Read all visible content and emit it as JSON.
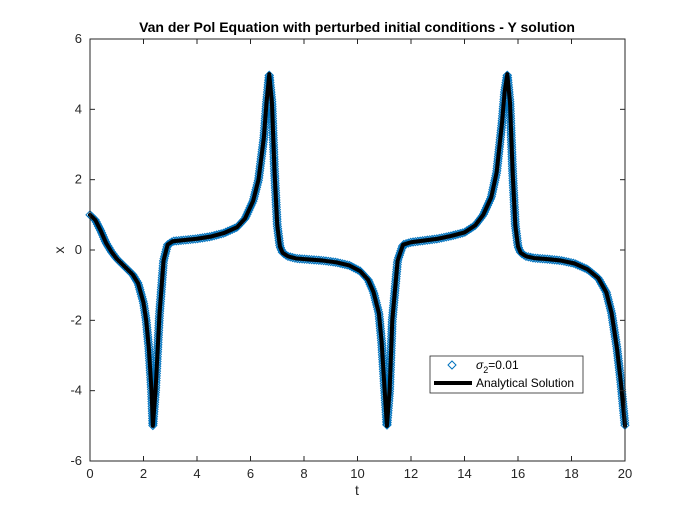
{
  "chart_data": {
    "type": "line",
    "title": "Van der Pol Equation with perturbed initial conditions - Y solution",
    "xlabel": "t",
    "ylabel": "x",
    "xlim": [
      0,
      20
    ],
    "ylim": [
      -6,
      6
    ],
    "xticks": [
      "0",
      "2",
      "4",
      "6",
      "8",
      "10",
      "12",
      "14",
      "16",
      "18",
      "20"
    ],
    "yticks": [
      "6",
      "4",
      "2",
      "0",
      "-2",
      "-4",
      "-6"
    ],
    "grid": false,
    "legend_position": "lower-right",
    "colors": {
      "scatter": "#0072BD",
      "line": "#000000"
    },
    "series": [
      {
        "name": "σ2=0.01",
        "legend_main": "σ",
        "legend_sub": "2",
        "legend_tail": "=0.01",
        "kind": "scatter",
        "marker": "diamond"
      },
      {
        "name": "Analytical Solution",
        "kind": "line",
        "x": [
          0,
          0.2,
          0.4,
          0.6,
          0.8,
          1.0,
          1.2,
          1.4,
          1.6,
          1.8,
          2.0,
          2.1,
          2.2,
          2.3,
          2.35,
          2.45,
          2.6,
          2.75,
          2.9,
          3.1,
          3.5,
          4.0,
          4.5,
          5.0,
          5.5,
          5.8,
          6.1,
          6.3,
          6.5,
          6.6,
          6.7,
          6.8,
          6.9,
          7.0,
          7.1,
          7.2,
          7.4,
          7.7,
          8.2,
          8.7,
          9.2,
          9.7,
          10.1,
          10.4,
          10.6,
          10.8,
          10.9,
          11.0,
          11.1,
          11.2,
          11.3,
          11.5,
          11.7,
          12.0,
          12.5,
          13.0,
          13.5,
          14.0,
          14.4,
          14.7,
          15.0,
          15.2,
          15.4,
          15.5,
          15.6,
          15.7,
          15.8,
          15.9,
          16.0,
          16.1,
          16.3,
          16.6,
          17.1,
          17.6,
          18.1,
          18.6,
          19.0,
          19.3,
          19.5,
          19.7,
          19.85,
          20.0
        ],
        "y": [
          1.0,
          0.85,
          0.55,
          0.2,
          -0.05,
          -0.25,
          -0.4,
          -0.55,
          -0.7,
          -0.95,
          -1.5,
          -2.0,
          -2.8,
          -4.0,
          -5.0,
          -4.0,
          -1.8,
          -0.3,
          0.15,
          0.25,
          0.28,
          0.32,
          0.38,
          0.48,
          0.65,
          0.9,
          1.4,
          2.0,
          3.2,
          4.2,
          5.0,
          4.2,
          2.2,
          0.7,
          0.1,
          -0.08,
          -0.18,
          -0.24,
          -0.27,
          -0.3,
          -0.35,
          -0.44,
          -0.6,
          -0.85,
          -1.2,
          -1.8,
          -2.6,
          -3.8,
          -5.0,
          -4.0,
          -2.0,
          -0.3,
          0.15,
          0.22,
          0.27,
          0.32,
          0.4,
          0.5,
          0.7,
          1.0,
          1.5,
          2.2,
          3.6,
          4.5,
          5.0,
          4.2,
          2.2,
          0.7,
          0.1,
          -0.08,
          -0.18,
          -0.23,
          -0.26,
          -0.3,
          -0.38,
          -0.55,
          -0.8,
          -1.2,
          -1.8,
          -2.8,
          -3.8,
          -5.0
        ]
      }
    ]
  }
}
